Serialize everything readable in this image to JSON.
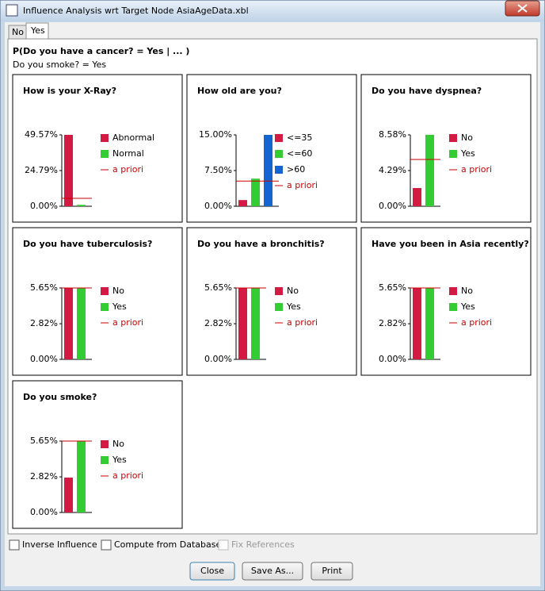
{
  "window": {
    "title": "Influence Analysis wrt Target Node AsiaAgeData.xbl"
  },
  "tabs": [
    "No",
    "Yes"
  ],
  "header": {
    "query": "P(Do you have a cancer? = Yes | ... )",
    "evidence": "Do you smoke? = Yes"
  },
  "chart_data": [
    {
      "type": "bar",
      "title": "How is your X-Ray?",
      "categories": [
        "Abnormal",
        "Normal"
      ],
      "values": [
        49.57,
        1.0
      ],
      "colors": [
        "#d21a43",
        "#33cc33"
      ],
      "prior": 5.5,
      "prior_label": "a priori",
      "prior_color": "#cc0000",
      "ylim": [
        0,
        49.57
      ],
      "yticks": [
        {
          "value": 0,
          "label": "0.00%"
        },
        {
          "value": 24.79,
          "label": "24.79%"
        },
        {
          "value": 49.57,
          "label": "49.57%"
        }
      ]
    },
    {
      "type": "bar",
      "title": "How old are you?",
      "categories": [
        "<=35",
        "<=60",
        ">60"
      ],
      "values": [
        1.3,
        5.8,
        15.0
      ],
      "colors": [
        "#d21a43",
        "#33cc33",
        "#1464d2"
      ],
      "prior": 5.3,
      "prior_label": "a priori",
      "prior_color": "#cc0000",
      "ylim": [
        0,
        15
      ],
      "yticks": [
        {
          "value": 0,
          "label": "0.00%"
        },
        {
          "value": 7.5,
          "label": "7.50%"
        },
        {
          "value": 15,
          "label": "15.00%"
        }
      ]
    },
    {
      "type": "bar",
      "title": "Do you have dyspnea?",
      "categories": [
        "No",
        "Yes"
      ],
      "values": [
        2.19,
        8.58
      ],
      "colors": [
        "#d21a43",
        "#33cc33"
      ],
      "prior": 5.62,
      "prior_label": "a priori",
      "prior_color": "#cc0000",
      "ylim": [
        0,
        8.58
      ],
      "yticks": [
        {
          "value": 0,
          "label": "0.00%"
        },
        {
          "value": 4.29,
          "label": "4.29%"
        },
        {
          "value": 8.58,
          "label": "8.58%"
        }
      ]
    },
    {
      "type": "bar",
      "title": "Do you have tuberculosis?",
      "categories": [
        "No",
        "Yes"
      ],
      "values": [
        5.65,
        5.65
      ],
      "colors": [
        "#d21a43",
        "#33cc33"
      ],
      "prior": 5.65,
      "prior_label": "a priori",
      "prior_color": "#cc0000",
      "ylim": [
        0,
        5.65
      ],
      "yticks": [
        {
          "value": 0,
          "label": "0.00%"
        },
        {
          "value": 2.82,
          "label": "2.82%"
        },
        {
          "value": 5.65,
          "label": "5.65%"
        }
      ]
    },
    {
      "type": "bar",
      "title": "Do you have a bronchitis?",
      "categories": [
        "No",
        "Yes"
      ],
      "values": [
        5.65,
        5.65
      ],
      "colors": [
        "#d21a43",
        "#33cc33"
      ],
      "prior": 5.65,
      "prior_label": "a priori",
      "prior_color": "#cc0000",
      "ylim": [
        0,
        5.65
      ],
      "yticks": [
        {
          "value": 0,
          "label": "0.00%"
        },
        {
          "value": 2.82,
          "label": "2.82%"
        },
        {
          "value": 5.65,
          "label": "5.65%"
        }
      ]
    },
    {
      "type": "bar",
      "title": "Have you been in Asia recently?",
      "categories": [
        "No",
        "Yes"
      ],
      "values": [
        5.65,
        5.65
      ],
      "colors": [
        "#d21a43",
        "#33cc33"
      ],
      "prior": 5.65,
      "prior_label": "a priori",
      "prior_color": "#cc0000",
      "ylim": [
        0,
        5.65
      ],
      "yticks": [
        {
          "value": 0,
          "label": "0.00%"
        },
        {
          "value": 2.82,
          "label": "2.82%"
        },
        {
          "value": 5.65,
          "label": "5.65%"
        }
      ]
    },
    {
      "type": "bar",
      "title": "Do you smoke?",
      "categories": [
        "No",
        "Yes"
      ],
      "values": [
        2.76,
        5.65
      ],
      "colors": [
        "#d21a43",
        "#33cc33"
      ],
      "prior": 5.65,
      "prior_label": "a priori",
      "prior_color": "#cc0000",
      "ylim": [
        0,
        5.65
      ],
      "yticks": [
        {
          "value": 0,
          "label": "0.00%"
        },
        {
          "value": 2.82,
          "label": "2.82%"
        },
        {
          "value": 5.65,
          "label": "5.65%"
        }
      ]
    }
  ],
  "options": [
    {
      "label": "Inverse Influence",
      "enabled": true
    },
    {
      "label": "Compute from Database",
      "enabled": true
    },
    {
      "label": "Fix References",
      "enabled": false
    }
  ],
  "buttons": [
    "Close",
    "Save As...",
    "Print"
  ]
}
